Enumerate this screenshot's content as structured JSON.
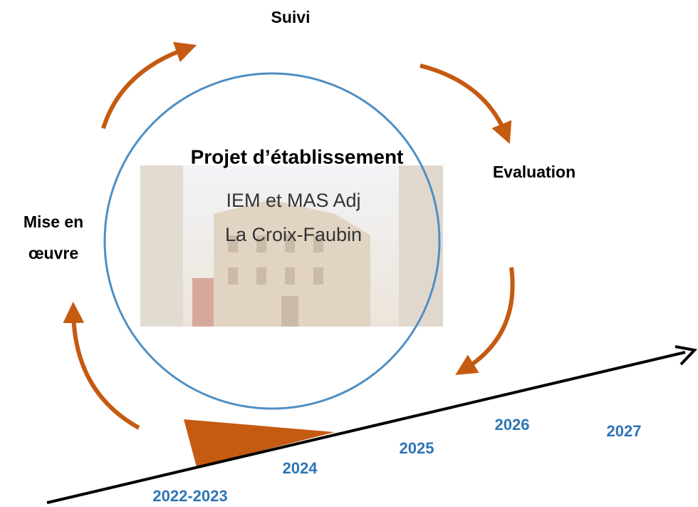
{
  "center": {
    "title": "Projet d’établissement",
    "lines": [
      "IEM et MAS Adj",
      "La Croix-Faubin"
    ]
  },
  "cycle": {
    "top": "Suivi",
    "right": "Evaluation",
    "left": [
      "Mise en",
      "œuvre"
    ]
  },
  "timeline": [
    "2022-2023",
    "2024",
    "2025",
    "2026",
    "2027"
  ]
}
